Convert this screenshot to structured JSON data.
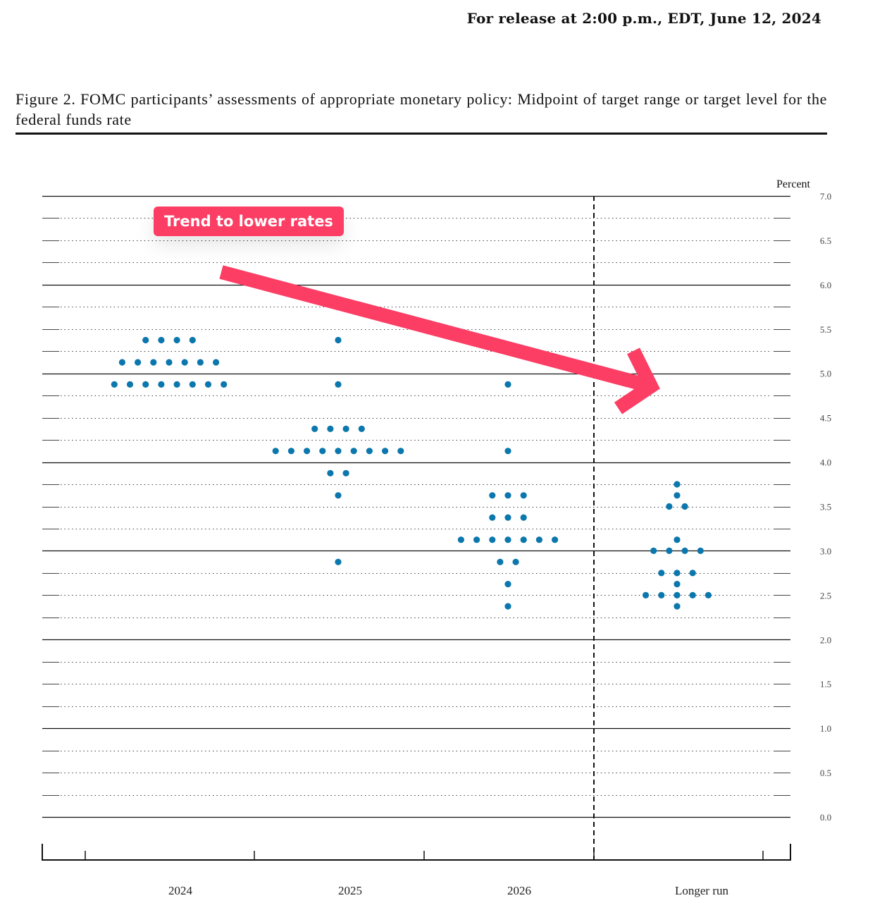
{
  "header": {
    "release_line": "For release at 2:00 p.m., EDT, June 12, 2024"
  },
  "figure": {
    "title": "Figure 2.  FOMC participants’ assessments of appropriate monetary policy:  Midpoint of target range or target level for the federal funds rate"
  },
  "annotation": {
    "label": "Trend to lower rates",
    "color": "#fc3d64",
    "arrow": {
      "from": [
        314,
        386
      ],
      "to": [
        924,
        548
      ],
      "color": "#fc3d64"
    }
  },
  "colors": {
    "dot": "#0b77ad",
    "grid": "#222222",
    "background": "#ffffff"
  },
  "chart_data": {
    "type": "scatter",
    "subtype": "dot-plot",
    "title": "FOMC participants’ assessments of appropriate monetary policy: Midpoint of target range or target level for the federal funds rate",
    "xlabel": "",
    "ylabel": "Percent",
    "ylim": [
      0.0,
      7.0
    ],
    "y_ticks": [
      "0.0",
      "0.5",
      "1.0",
      "1.5",
      "2.0",
      "2.5",
      "3.0",
      "3.5",
      "4.0",
      "4.5",
      "5.0",
      "5.5",
      "6.0",
      "6.5",
      "7.0"
    ],
    "grid": true,
    "legend": null,
    "categories": [
      "2024",
      "2025",
      "2026",
      "Longer run"
    ],
    "series": [
      {
        "name": "2024",
        "points": [
          {
            "value": 5.375,
            "count": 4
          },
          {
            "value": 5.125,
            "count": 7
          },
          {
            "value": 4.875,
            "count": 8
          }
        ]
      },
      {
        "name": "2025",
        "points": [
          {
            "value": 5.375,
            "count": 1
          },
          {
            "value": 4.875,
            "count": 1
          },
          {
            "value": 4.375,
            "count": 4
          },
          {
            "value": 4.125,
            "count": 9
          },
          {
            "value": 3.875,
            "count": 2
          },
          {
            "value": 3.625,
            "count": 1
          },
          {
            "value": 2.875,
            "count": 1
          }
        ]
      },
      {
        "name": "2026",
        "points": [
          {
            "value": 4.875,
            "count": 1
          },
          {
            "value": 4.125,
            "count": 1
          },
          {
            "value": 3.625,
            "count": 3
          },
          {
            "value": 3.375,
            "count": 3
          },
          {
            "value": 3.125,
            "count": 7
          },
          {
            "value": 2.875,
            "count": 2
          },
          {
            "value": 2.625,
            "count": 1
          },
          {
            "value": 2.375,
            "count": 1
          }
        ]
      },
      {
        "name": "Longer run",
        "points": [
          {
            "value": 3.75,
            "count": 1
          },
          {
            "value": 3.625,
            "count": 1
          },
          {
            "value": 3.5,
            "count": 2
          },
          {
            "value": 3.125,
            "count": 1
          },
          {
            "value": 3.0,
            "count": 4
          },
          {
            "value": 2.75,
            "count": 3
          },
          {
            "value": 2.625,
            "count": 1
          },
          {
            "value": 2.5,
            "count": 5
          },
          {
            "value": 2.375,
            "count": 1
          }
        ]
      }
    ],
    "annotations": [
      "Trend to lower rates"
    ]
  }
}
